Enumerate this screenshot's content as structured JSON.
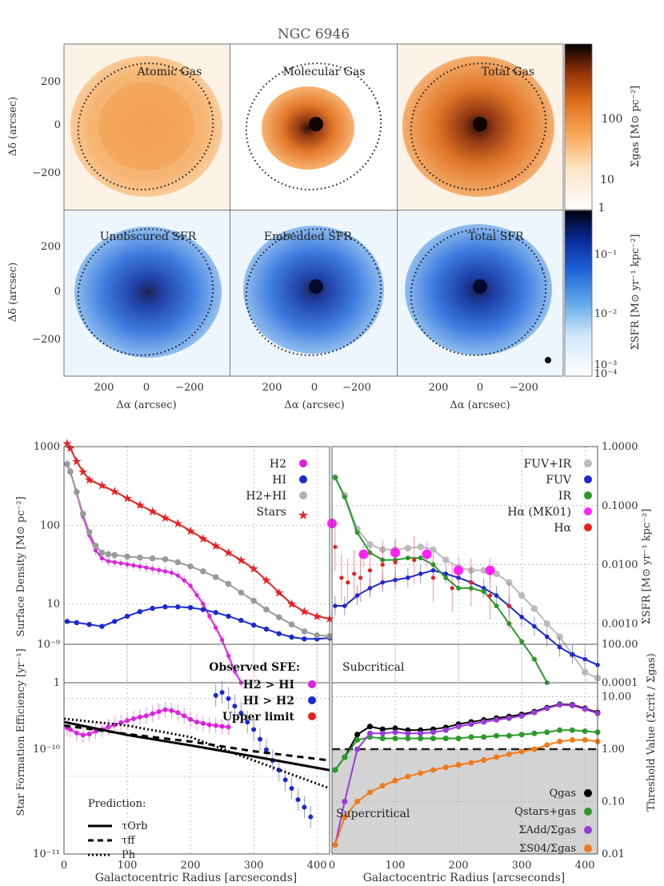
{
  "figure_title": "NGC 6946",
  "colors": {
    "gas_cmap": [
      "#ffffff",
      "#fde3c4",
      "#f9a85a",
      "#e06f1c",
      "#9a3309",
      "#2a0b02",
      "#000000"
    ],
    "sfr_cmap": [
      "#ffffff",
      "#cfe6fa",
      "#5ea6ea",
      "#1d5fd6",
      "#0a2a9a",
      "#021048",
      "#000010"
    ],
    "h2": "#e020e0",
    "hi": "#1a2ad0",
    "total": "#9a9a9a",
    "stars": "#e82020",
    "fuvir": "#bbbbbb",
    "fuv": "#1a2ad0",
    "ir": "#2a9a2a",
    "ha_mk01": "#ff20ff",
    "ha": "#e82020",
    "qgas": "#000000",
    "qstars": "#2a9a2a",
    "sigma_dha": "#9a3ad8",
    "sigma_s04": "#f07a1a",
    "threshold_shade": "#d3d3d3"
  },
  "chart_data": [
    {
      "type": "heatmap",
      "name": "gas_maps",
      "panels": [
        "Atomic Gas",
        "Molecular Gas",
        "Total Gas"
      ],
      "ylabel": "Δδ (arcsec)",
      "y_ticks": [
        "200",
        "0",
        "−200"
      ],
      "colorbar_label": "Σgas [M⊙ pc⁻²]",
      "colorbar_ticks": [
        "100",
        "10",
        "1"
      ],
      "colorbar_range": [
        1,
        400
      ]
    },
    {
      "type": "heatmap",
      "name": "sfr_maps",
      "panels": [
        "Unobscured SFR",
        "Embedded SFR",
        "Total SFR"
      ],
      "xlabel": "Δα (arcsec)",
      "ylabel": "Δδ (arcsec)",
      "x_ticks": [
        "200",
        "0",
        "−200"
      ],
      "y_ticks": [
        "200",
        "0",
        "−200"
      ],
      "colorbar_label": "ΣSFR [M⊙ yr⁻¹ kpc⁻²]",
      "colorbar_ticks": [
        "10⁻¹",
        "10⁻²",
        "10⁻³",
        "10⁻⁴"
      ]
    },
    {
      "type": "line",
      "name": "surface_density",
      "ylabel": "Surface Density [M⊙ pc⁻²]",
      "yscale": "log",
      "ylim": [
        1,
        1000
      ],
      "xlim": [
        0,
        420
      ],
      "y_tick_labels": [
        "1000",
        "100",
        "10",
        "1"
      ],
      "legend": [
        "H2",
        "HI",
        "H2+HI",
        "Stars"
      ],
      "series": [
        {
          "name": "H2",
          "x": [
            5,
            10,
            20,
            30,
            40,
            50,
            60,
            70,
            80,
            90,
            100,
            110,
            120,
            130,
            140,
            150,
            160,
            170,
            180,
            190,
            200,
            210,
            220,
            230,
            240,
            250,
            260,
            270,
            280
          ],
          "values": [
            600,
            480,
            260,
            130,
            75,
            48,
            38,
            35,
            34,
            33,
            32,
            31,
            30,
            29,
            28,
            27,
            26,
            25,
            23,
            20,
            17,
            13,
            10,
            7,
            5,
            3.5,
            2.2,
            1.4,
            1.0
          ]
        },
        {
          "name": "HI",
          "x": [
            5,
            20,
            40,
            60,
            80,
            100,
            120,
            140,
            160,
            180,
            200,
            220,
            240,
            260,
            280,
            300,
            320,
            340,
            360,
            380,
            400,
            420
          ],
          "values": [
            6,
            5.8,
            5.5,
            5.2,
            6,
            7,
            8,
            8.8,
            9.2,
            9.2,
            9,
            8.5,
            7.8,
            7,
            6.2,
            5.4,
            4.8,
            4.2,
            3.8,
            3.6,
            3.6,
            3.7
          ]
        },
        {
          "name": "H2+HI",
          "x": [
            5,
            10,
            20,
            30,
            40,
            50,
            60,
            70,
            80,
            100,
            120,
            140,
            160,
            180,
            200,
            220,
            240,
            260,
            280,
            300,
            320,
            340,
            360,
            380,
            400,
            420
          ],
          "values": [
            600,
            480,
            265,
            140,
            82,
            55,
            45,
            43,
            42,
            40,
            39,
            38,
            37,
            34,
            30,
            26,
            22,
            18,
            14,
            11,
            8.5,
            6.8,
            5.5,
            4.5,
            4,
            3.9
          ]
        },
        {
          "name": "Stars",
          "x": [
            5,
            10,
            20,
            30,
            40,
            60,
            80,
            100,
            120,
            140,
            160,
            180,
            200,
            220,
            240,
            260,
            280,
            300,
            320,
            340,
            360,
            380,
            400,
            420
          ],
          "values": [
            1100,
            950,
            650,
            480,
            380,
            320,
            270,
            220,
            180,
            150,
            125,
            105,
            85,
            68,
            55,
            45,
            36,
            28,
            20,
            14,
            10,
            8,
            7,
            6.5
          ]
        }
      ]
    },
    {
      "type": "line",
      "name": "sfr_surface_density",
      "ylabel": "ΣSFR [M⊙ yr⁻¹ kpc⁻²]",
      "yscale": "log",
      "ylim": [
        0.0001,
        1
      ],
      "xlim": [
        0,
        420
      ],
      "y_tick_labels": [
        "1.0000",
        "0.1000",
        "0.0100",
        "0.0010",
        "0.0001"
      ],
      "legend": [
        "FUV+IR",
        "FUV",
        "IR",
        "Hα (MK01)",
        "Hα"
      ],
      "series": [
        {
          "name": "FUV+IR",
          "x": [
            5,
            20,
            40,
            60,
            80,
            100,
            120,
            140,
            160,
            180,
            200,
            220,
            240,
            260,
            280,
            300,
            320,
            340,
            360,
            380,
            400,
            420
          ],
          "values": [
            0.3,
            0.15,
            0.04,
            0.022,
            0.018,
            0.018,
            0.019,
            0.02,
            0.018,
            0.012,
            0.009,
            0.008,
            0.008,
            0.007,
            0.005,
            0.003,
            0.0018,
            0.001,
            0.0006,
            0.0003,
            0.00015,
            0.00012
          ]
        },
        {
          "name": "FUV",
          "x": [
            5,
            20,
            40,
            60,
            80,
            100,
            120,
            140,
            160,
            180,
            200,
            220,
            240,
            260,
            280,
            300,
            320,
            340,
            360,
            380,
            400,
            420
          ],
          "values": [
            0.002,
            0.002,
            0.003,
            0.004,
            0.005,
            0.0055,
            0.006,
            0.007,
            0.008,
            0.007,
            0.006,
            0.005,
            0.004,
            0.003,
            0.002,
            0.0013,
            0.0009,
            0.0006,
            0.0004,
            0.0003,
            0.00025,
            0.0002
          ]
        },
        {
          "name": "IR",
          "x": [
            5,
            20,
            40,
            60,
            80,
            100,
            120,
            140,
            160,
            180,
            200,
            220,
            240,
            260,
            280,
            300,
            320,
            340
          ],
          "values": [
            0.3,
            0.14,
            0.035,
            0.016,
            0.012,
            0.012,
            0.013,
            0.013,
            0.01,
            0.006,
            0.004,
            0.004,
            0.0035,
            0.002,
            0.001,
            0.0005,
            0.00025,
            0.0001
          ]
        },
        {
          "name": "Hα (MK01)",
          "x": [
            0,
            50,
            100,
            150,
            200,
            250
          ],
          "values": [
            0.05,
            0.015,
            0.016,
            0.015,
            0.008,
            0.008
          ]
        },
        {
          "name": "Hα",
          "x": [
            5,
            15,
            25,
            35,
            45,
            60,
            80,
            100,
            130,
            160,
            190,
            220,
            250,
            280
          ],
          "values": [
            0.02,
            0.006,
            0.005,
            0.007,
            0.006,
            0.008,
            0.01,
            0.011,
            0.012,
            0.006,
            0.004,
            0.005,
            0.003,
            0.002
          ]
        }
      ]
    },
    {
      "type": "line",
      "name": "star_formation_efficiency",
      "ylabel": "Star Formation Efficiency [yr⁻¹]",
      "xlabel": "Galactocentric Radius [arcseconds]",
      "yscale": "log",
      "ylim": [
        1e-11,
        5e-09
      ],
      "xlim": [
        0,
        420
      ],
      "x_tick_labels": [
        "0",
        "100",
        "200",
        "300",
        "400"
      ],
      "y_tick_labels": [
        "10⁻⁹",
        "10⁻¹⁰",
        "10⁻¹¹"
      ],
      "legend_title": "Observed SFE:",
      "legend": [
        "H2 > HI",
        "HI > H2",
        "Upper limit"
      ],
      "prediction_title": "Prediction:",
      "prediction_legend": [
        "τOrb",
        "τff",
        "Ph"
      ],
      "series": [
        {
          "name": "H2 > HI",
          "x": [
            5,
            10,
            20,
            30,
            40,
            50,
            60,
            70,
            80,
            90,
            100,
            110,
            120,
            130,
            140,
            150,
            160,
            170,
            180,
            190,
            200,
            210,
            220,
            230,
            240,
            250,
            260
          ],
          "values": [
            4.2e-10,
            4e-10,
            3.6e-10,
            3.4e-10,
            3.5e-10,
            3.8e-10,
            4e-10,
            4.3e-10,
            4.6e-10,
            4.9e-10,
            5.2e-10,
            5.5e-10,
            5.8e-10,
            6e-10,
            6.4e-10,
            6.8e-10,
            7.2e-10,
            7e-10,
            6.6e-10,
            6e-10,
            5.4e-10,
            5e-10,
            4.8e-10,
            4.6e-10,
            4.5e-10,
            4.4e-10,
            4.3e-10
          ]
        },
        {
          "name": "HI > H2",
          "x": [
            240,
            250,
            260,
            270,
            280,
            290,
            300,
            310,
            320,
            330,
            340,
            350,
            360,
            370,
            380,
            390
          ],
          "values": [
            1.1e-09,
            1.2e-09,
            1e-09,
            8e-10,
            6.5e-10,
            5e-10,
            4e-10,
            3e-10,
            2.2e-10,
            1.6e-10,
            1.2e-10,
            9e-11,
            7e-11,
            5e-11,
            4e-11,
            3e-11
          ]
        },
        {
          "name": "τOrb",
          "x": [
            0,
            100,
            200,
            300,
            420
          ],
          "values": [
            5e-10,
            3.4e-10,
            2.5e-10,
            1.8e-10,
            1.2e-10
          ]
        },
        {
          "name": "τff",
          "x": [
            0,
            100,
            200,
            300,
            420
          ],
          "values": [
            4.5e-10,
            3.5e-10,
            2.8e-10,
            2.1e-10,
            1.6e-10
          ]
        },
        {
          "name": "Ph",
          "x": [
            0,
            100,
            200,
            300,
            420
          ],
          "values": [
            5.5e-10,
            4.5e-10,
            3.2e-10,
            1.6e-10,
            7e-11
          ]
        }
      ]
    },
    {
      "type": "line",
      "name": "threshold_value",
      "ylabel": "Threshold Value (Σcrit / Σgas)",
      "xlabel": "Galactocentric Radius [arcseconds]",
      "yscale": "log",
      "ylim": [
        0.01,
        100
      ],
      "xlim": [
        0,
        420
      ],
      "x_tick_labels": [
        "0",
        "100",
        "200",
        "300",
        "400"
      ],
      "y_tick_labels": [
        "100.00",
        "10.00",
        "1.00",
        "0.10",
        "0.01"
      ],
      "region_labels": [
        "Subcritical",
        "Supercritical"
      ],
      "threshold": 1.0,
      "legend": [
        "Qgas",
        "Qstars+gas",
        "ΣAdd/Σgas",
        "ΣS04/Σgas"
      ],
      "series": [
        {
          "name": "Qgas",
          "x": [
            5,
            20,
            40,
            60,
            80,
            100,
            120,
            140,
            160,
            180,
            200,
            220,
            240,
            260,
            280,
            300,
            320,
            340,
            360,
            380,
            400,
            420
          ],
          "values": [
            0.4,
            0.7,
            1.9,
            2.7,
            2.4,
            2.5,
            2.3,
            2.3,
            2.4,
            2.6,
            3.0,
            3.3,
            3.6,
            3.9,
            4.2,
            4.6,
            5.2,
            6.2,
            7.2,
            7.0,
            6.0,
            5.0
          ]
        },
        {
          "name": "Qstars+gas",
          "x": [
            5,
            20,
            40,
            60,
            80,
            100,
            120,
            140,
            160,
            180,
            200,
            220,
            240,
            260,
            280,
            300,
            320,
            340,
            360,
            380,
            400,
            420
          ],
          "values": [
            0.4,
            0.7,
            1.5,
            1.7,
            1.6,
            1.6,
            1.6,
            1.6,
            1.6,
            1.6,
            1.6,
            1.7,
            1.7,
            1.8,
            1.8,
            1.9,
            2.0,
            2.1,
            2.3,
            2.3,
            2.2,
            2.1
          ]
        },
        {
          "name": "ΣAdd/Σgas",
          "x": [
            5,
            20,
            40,
            60,
            80,
            100,
            120,
            140,
            160,
            180,
            200,
            220,
            240,
            260,
            280,
            300,
            320,
            340,
            360,
            380,
            400,
            420
          ],
          "values": [
            0.015,
            0.1,
            1.0,
            2.0,
            2.0,
            2.1,
            2.0,
            2.0,
            2.1,
            2.3,
            2.7,
            3.0,
            3.3,
            3.6,
            3.9,
            4.3,
            5.0,
            6.0,
            7.0,
            6.8,
            5.8,
            4.8
          ]
        },
        {
          "name": "ΣS04/Σgas",
          "x": [
            5,
            20,
            40,
            60,
            80,
            100,
            120,
            140,
            160,
            180,
            200,
            220,
            240,
            260,
            280,
            300,
            320,
            340,
            360,
            380,
            400,
            420
          ],
          "values": [
            0.015,
            0.05,
            0.1,
            0.15,
            0.2,
            0.25,
            0.3,
            0.35,
            0.4,
            0.45,
            0.5,
            0.55,
            0.62,
            0.7,
            0.8,
            0.9,
            1.0,
            1.2,
            1.4,
            1.5,
            1.5,
            1.4
          ]
        }
      ]
    }
  ]
}
